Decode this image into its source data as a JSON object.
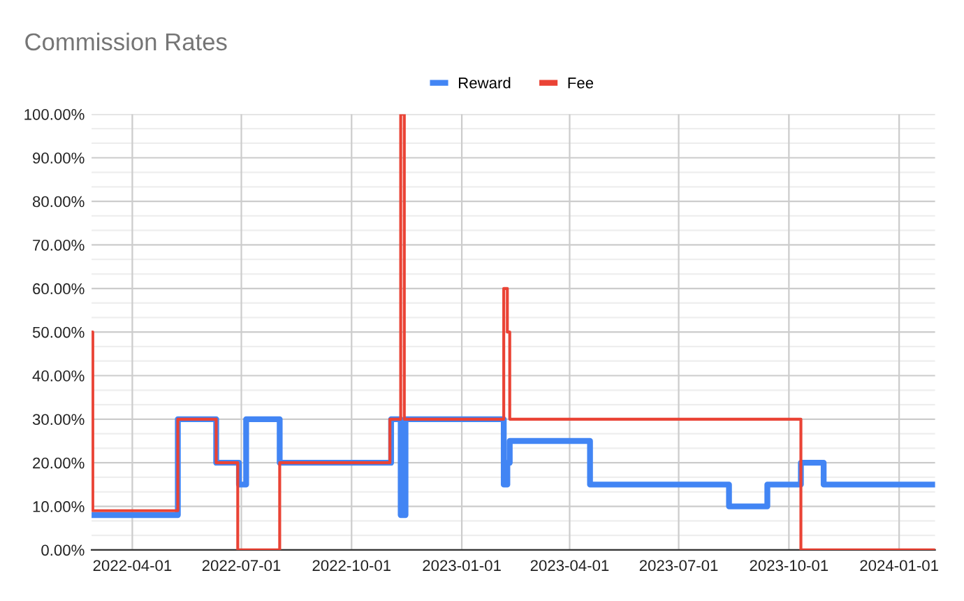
{
  "chart_data": {
    "type": "step",
    "title": "Commission Rates",
    "legend": "top",
    "grid": true,
    "line_style": "solid",
    "marker": "none",
    "xlim": [
      "2022-02-26",
      "2024-01-31"
    ],
    "xticks": [
      "2022-04-01",
      "2022-07-01",
      "2022-10-01",
      "2023-01-01",
      "2023-04-01",
      "2023-07-01",
      "2023-10-01",
      "2024-01-01"
    ],
    "ylim": [
      0,
      100
    ],
    "yticks": [
      {
        "value": 0,
        "label": "0.00%"
      },
      {
        "value": 10,
        "label": "10.00%"
      },
      {
        "value": 20,
        "label": "20.00%"
      },
      {
        "value": 30,
        "label": "30.00%"
      },
      {
        "value": 40,
        "label": "40.00%"
      },
      {
        "value": 50,
        "label": "50.00%"
      },
      {
        "value": 60,
        "label": "60.00%"
      },
      {
        "value": 70,
        "label": "70.00%"
      },
      {
        "value": 80,
        "label": "80.00%"
      },
      {
        "value": 90,
        "label": "90.00%"
      },
      {
        "value": 100,
        "label": "100.00%"
      }
    ],
    "series": [
      {
        "name": "Reward",
        "color": "#4285f4",
        "x": [
          "2022-02-26",
          "2022-05-09",
          "2022-06-10",
          "2022-06-29",
          "2022-07-05",
          "2022-08-02",
          "2022-11-03",
          "2022-11-11",
          "2022-11-15",
          "2023-02-05",
          "2023-02-08",
          "2023-02-10",
          "2023-04-18",
          "2023-08-12",
          "2023-09-13",
          "2023-10-11",
          "2023-10-30",
          "2024-01-31"
        ],
        "values": [
          8,
          30,
          20,
          15,
          30,
          20,
          30,
          8,
          30,
          15,
          20,
          25,
          15,
          10,
          15,
          20,
          15,
          15
        ]
      },
      {
        "name": "Fee",
        "color": "#ea4335",
        "x": [
          "2022-02-26",
          "2022-02-27",
          "2022-05-09",
          "2022-06-10",
          "2022-06-28",
          "2022-08-02",
          "2022-11-02",
          "2022-11-11",
          "2022-11-14",
          "2023-02-05",
          "2023-02-08",
          "2023-02-10",
          "2023-10-11",
          "2024-01-31"
        ],
        "values": [
          50,
          9,
          30,
          20,
          0,
          20,
          30,
          100,
          30,
          60,
          50,
          30,
          0,
          0
        ]
      }
    ]
  }
}
